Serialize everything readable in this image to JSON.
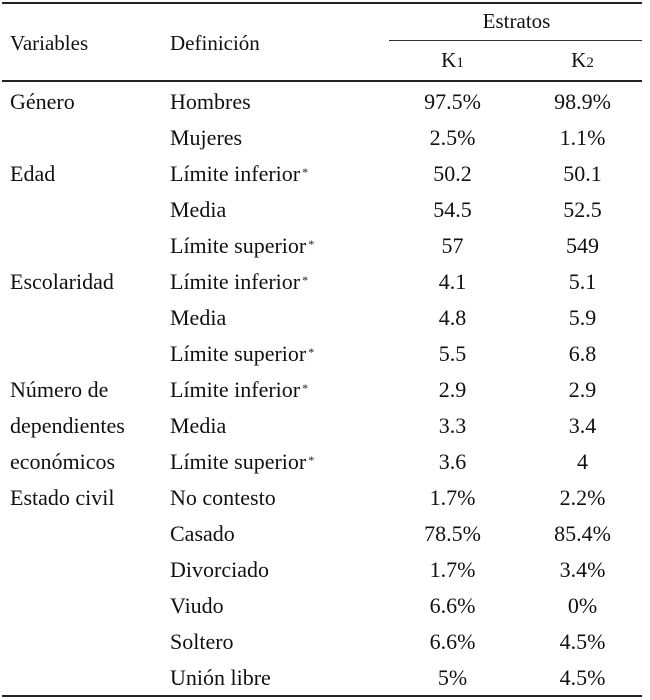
{
  "header": {
    "variables": "Variables",
    "definicion": "Definición",
    "estratos": "Estratos",
    "k1_base": "K",
    "k1_sub": "1",
    "k2_base": "K",
    "k2_sub": "2"
  },
  "marker": "*",
  "rows": [
    {
      "variable": "Género",
      "definicion": "Hombres",
      "k1": "97.5%",
      "k2": "98.9%"
    },
    {
      "variable": "",
      "definicion": "Mujeres",
      "k1": "2.5%",
      "k2": "1.1%"
    },
    {
      "variable": "Edad",
      "definicion": "Límite inferior",
      "k1": "50.2",
      "k2": "50.1"
    },
    {
      "variable": "",
      "definicion": "Media",
      "k1": "54.5",
      "k2": "52.5"
    },
    {
      "variable": "",
      "definicion": "Límite superior",
      "k1": "57",
      "k2": "549"
    },
    {
      "variable": "Escolaridad",
      "definicion": "Límite inferior",
      "k1": "4.1",
      "k2": "5.1"
    },
    {
      "variable": "",
      "definicion": "Media",
      "k1": "4.8",
      "k2": "5.9"
    },
    {
      "variable": "",
      "definicion": "Límite superior",
      "k1": "5.5",
      "k2": "6.8"
    },
    {
      "variable": "Número de",
      "definicion": "Límite inferior",
      "k1": "2.9",
      "k2": "2.9"
    },
    {
      "variable": "dependientes",
      "definicion": "Media",
      "k1": "3.3",
      "k2": "3.4"
    },
    {
      "variable": "económicos",
      "definicion": "Límite superior",
      "k1": "3.6",
      "k2": "4"
    },
    {
      "variable": "Estado civil",
      "definicion": "No contesto",
      "k1": "1.7%",
      "k2": "2.2%"
    },
    {
      "variable": "",
      "definicion": "Casado",
      "k1": "78.5%",
      "k2": "85.4%"
    },
    {
      "variable": "",
      "definicion": "Divorciado",
      "k1": "1.7%",
      "k2": "3.4%"
    },
    {
      "variable": "",
      "definicion": "Viudo",
      "k1": "6.6%",
      "k2": "0%"
    },
    {
      "variable": "",
      "definicion": "Soltero",
      "k1": "6.6%",
      "k2": "4.5%"
    },
    {
      "variable": "",
      "definicion": "Unión libre",
      "k1": "5%",
      "k2": "4.5%"
    }
  ]
}
